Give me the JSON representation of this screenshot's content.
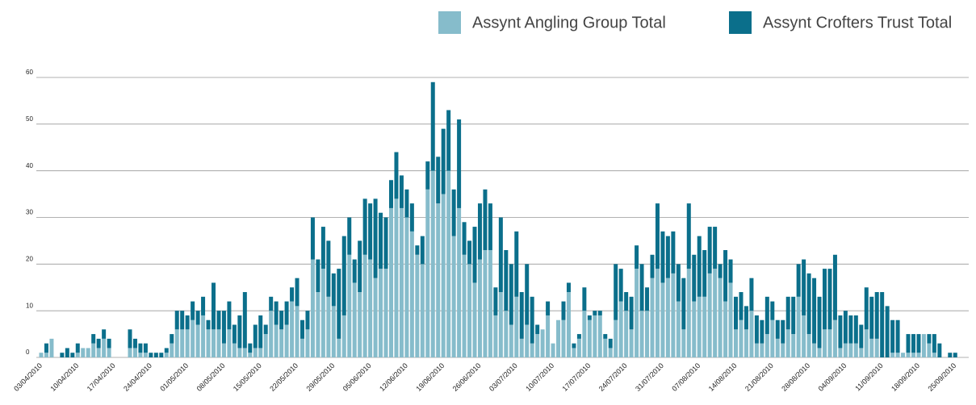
{
  "chart_data": {
    "type": "stacked_bar",
    "categories": [
      "03/04/2010",
      null,
      null,
      null,
      null,
      null,
      null,
      "10/04/2010",
      null,
      null,
      null,
      null,
      null,
      null,
      "17/04/2010",
      null,
      null,
      null,
      null,
      null,
      null,
      "24/04/2010",
      null,
      null,
      null,
      null,
      null,
      null,
      "01/05/2010",
      null,
      null,
      null,
      null,
      null,
      null,
      "08/05/2010",
      null,
      null,
      null,
      null,
      null,
      null,
      "15/05/2010",
      null,
      null,
      null,
      null,
      null,
      null,
      "22/05/2010",
      null,
      null,
      null,
      null,
      null,
      null,
      "29/05/2010",
      null,
      null,
      null,
      null,
      null,
      null,
      "05/06/2010",
      null,
      null,
      null,
      null,
      null,
      null,
      "12/06/2010",
      null,
      null,
      null,
      null,
      null,
      null,
      "19/06/2010",
      null,
      null,
      null,
      null,
      null,
      null,
      "26/06/2010",
      null,
      null,
      null,
      null,
      null,
      null,
      "03/07/2010",
      null,
      null,
      null,
      null,
      null,
      null,
      "10/07/2010",
      null,
      null,
      null,
      null,
      null,
      null,
      "17/07/2010",
      null,
      null,
      null,
      null,
      null,
      null,
      "24/07/2010",
      null,
      null,
      null,
      null,
      null,
      null,
      "31/07/2010",
      null,
      null,
      null,
      null,
      null,
      null,
      "07/08/2010",
      null,
      null,
      null,
      null,
      null,
      null,
      "14/08/2010",
      null,
      null,
      null,
      null,
      null,
      null,
      "21/08/2010",
      null,
      null,
      null,
      null,
      null,
      null,
      "28/08/2010",
      null,
      null,
      null,
      null,
      null,
      null,
      "04/09/2010",
      null,
      null,
      null,
      null,
      null,
      null,
      "11/09/2010",
      null,
      null,
      null,
      null,
      null,
      null,
      "18/09/2010",
      null,
      null,
      null,
      null,
      null,
      null,
      "25/09/2010"
    ],
    "series": [
      {
        "name": "Assynt Angling Group Total",
        "color": "#86bccb",
        "values": [
          1,
          1,
          4,
          0,
          0,
          0,
          0,
          1,
          2,
          2,
          3,
          2,
          4,
          2,
          0,
          0,
          0,
          2,
          2,
          1,
          1,
          0,
          0,
          0,
          1,
          3,
          6,
          6,
          6,
          8,
          7,
          9,
          6,
          6,
          6,
          3,
          6,
          3,
          2,
          2,
          1,
          2,
          2,
          5,
          10,
          7,
          6,
          7,
          12,
          11,
          4,
          6,
          21,
          14,
          19,
          13,
          11,
          4,
          9,
          22,
          16,
          14,
          22,
          21,
          17,
          19,
          19,
          32,
          34,
          32,
          30,
          27,
          22,
          20,
          36,
          40,
          33,
          35,
          40,
          26,
          32,
          22,
          20,
          16,
          21,
          23,
          23,
          9,
          14,
          10,
          7,
          13,
          4,
          7,
          3,
          5,
          6,
          9,
          3,
          8,
          8,
          14,
          2,
          4,
          10,
          8,
          9,
          9,
          4,
          2,
          8,
          12,
          10,
          6,
          19,
          10,
          10,
          17,
          19,
          16,
          17,
          18,
          12,
          6,
          19,
          12,
          13,
          13,
          18,
          19,
          17,
          12,
          16,
          6,
          8,
          6,
          10,
          3,
          3,
          5,
          8,
          4,
          3,
          6,
          5,
          13,
          9,
          5,
          3,
          2,
          6,
          6,
          8,
          2,
          3,
          3,
          3,
          2,
          6,
          4,
          4,
          0,
          0,
          1,
          1,
          1,
          1,
          1,
          1,
          5,
          3,
          1,
          0,
          0,
          0,
          0
        ]
      },
      {
        "name": "Assynt Crofters Trust Total",
        "color": "#0b6f8b",
        "values": [
          0,
          2,
          0,
          0,
          1,
          2,
          1,
          2,
          0,
          0,
          2,
          2,
          2,
          2,
          0,
          0,
          0,
          4,
          2,
          2,
          2,
          1,
          1,
          1,
          1,
          2,
          4,
          4,
          3,
          4,
          3,
          4,
          2,
          10,
          4,
          7,
          6,
          4,
          7,
          12,
          2,
          5,
          7,
          2,
          3,
          5,
          4,
          5,
          3,
          6,
          4,
          4,
          9,
          7,
          9,
          12,
          7,
          15,
          17,
          8,
          5,
          11,
          12,
          12,
          17,
          12,
          11,
          6,
          10,
          7,
          6,
          6,
          2,
          6,
          6,
          19,
          10,
          14,
          13,
          10,
          19,
          7,
          5,
          12,
          12,
          13,
          10,
          6,
          16,
          13,
          13,
          14,
          10,
          13,
          10,
          2,
          0,
          3,
          0,
          0,
          4,
          2,
          1,
          1,
          5,
          1,
          1,
          1,
          1,
          2,
          12,
          7,
          4,
          7,
          5,
          10,
          5,
          5,
          14,
          11,
          9,
          9,
          8,
          11,
          14,
          10,
          13,
          10,
          10,
          9,
          3,
          11,
          5,
          7,
          6,
          5,
          7,
          6,
          5,
          8,
          4,
          4,
          5,
          7,
          8,
          7,
          12,
          13,
          14,
          11,
          13,
          13,
          14,
          7,
          7,
          6,
          6,
          5,
          9,
          9,
          10,
          14,
          11,
          7,
          7,
          0,
          4,
          4,
          4,
          0,
          2,
          4,
          3,
          0,
          1,
          1
        ]
      }
    ],
    "ylim": [
      0,
      60
    ],
    "yticks": [
      0,
      10,
      20,
      30,
      40,
      50,
      60
    ],
    "grid": true,
    "legend": "top-right"
  }
}
